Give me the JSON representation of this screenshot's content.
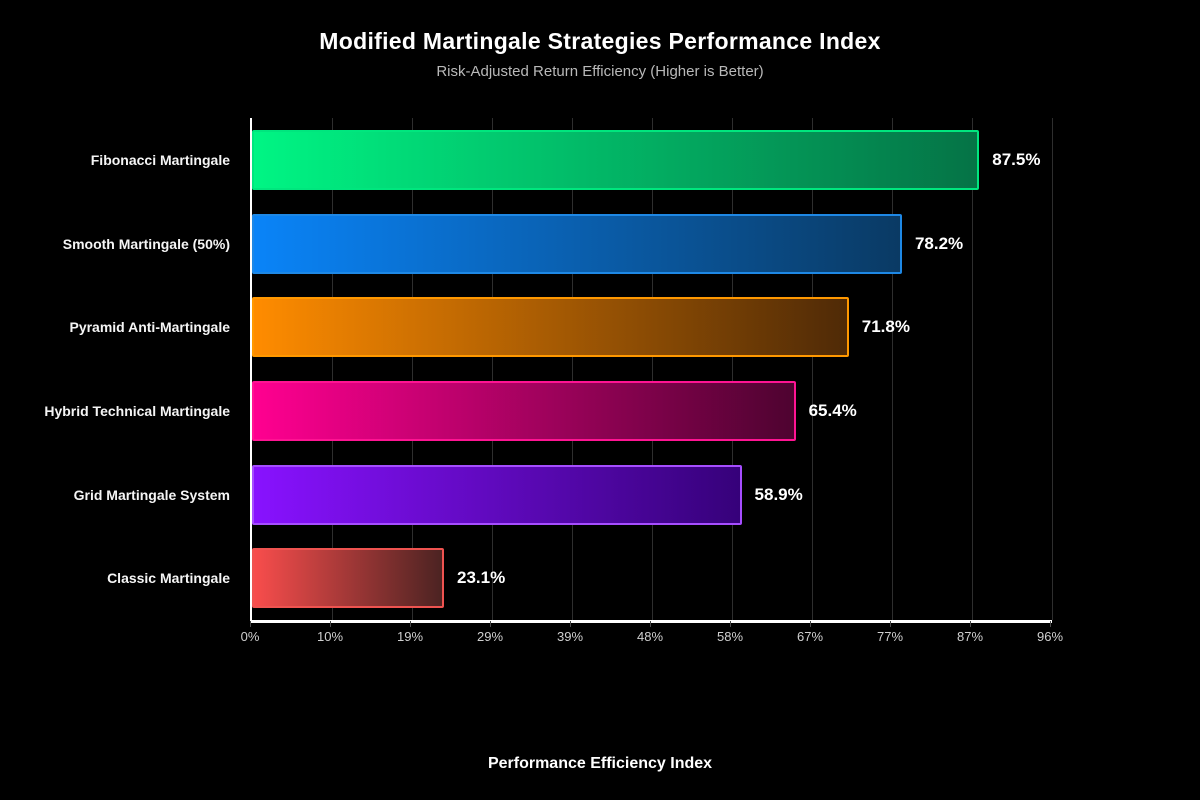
{
  "title": "Modified Martingale Strategies Performance Index",
  "subtitle": "Risk-Adjusted Return Efficiency (Higher is Better)",
  "xlabel": "Performance Efficiency Index",
  "colors": {
    "background": "#000000",
    "axis": "#ffffff",
    "gridline": "#2e2e2e",
    "title_text": "#ffffff",
    "subtitle_text": "#b9b9b9",
    "tick_text": "#cfcfcf",
    "value_text": "#ffffff"
  },
  "chart_data": {
    "type": "bar",
    "orientation": "horizontal",
    "title": "Modified Martingale Strategies Performance Index",
    "subtitle": "Risk-Adjusted Return Efficiency (Higher is Better)",
    "xlabel": "Performance Efficiency Index",
    "ylabel": "",
    "xlim": [
      0,
      96.25
    ],
    "grid": true,
    "legend": "none",
    "categories": [
      "Fibonacci Martingale",
      "Smooth Martingale (50%)",
      "Pyramid Anti-Martingale",
      "Hybrid Technical Martingale",
      "Grid Martingale System",
      "Classic Martingale"
    ],
    "values": [
      87.5,
      78.2,
      71.8,
      65.4,
      58.9,
      23.1
    ],
    "value_labels": [
      "87.5%",
      "78.2%",
      "71.8%",
      "65.4%",
      "58.9%",
      "23.1%"
    ],
    "tick_labels": [
      "0%",
      "10%",
      "19%",
      "29%",
      "39%",
      "48%",
      "58%",
      "67%",
      "77%",
      "87%",
      "96%"
    ],
    "bar_colors": [
      {
        "start": "#00f584",
        "end": "#057346",
        "border": "#00e67e"
      },
      {
        "start": "#0a84f8",
        "end": "#0a3a64",
        "border": "#1e88e5"
      },
      {
        "start": "#ff8c00",
        "end": "#4f2a06",
        "border": "#ff9800"
      },
      {
        "start": "#ff0090",
        "end": "#4e0330",
        "border": "#ff1493"
      },
      {
        "start": "#8812ff",
        "end": "#36017a",
        "border": "#a64dff"
      },
      {
        "start": "#f84d4c",
        "end": "#4c2322",
        "border": "#ef5350"
      }
    ]
  }
}
